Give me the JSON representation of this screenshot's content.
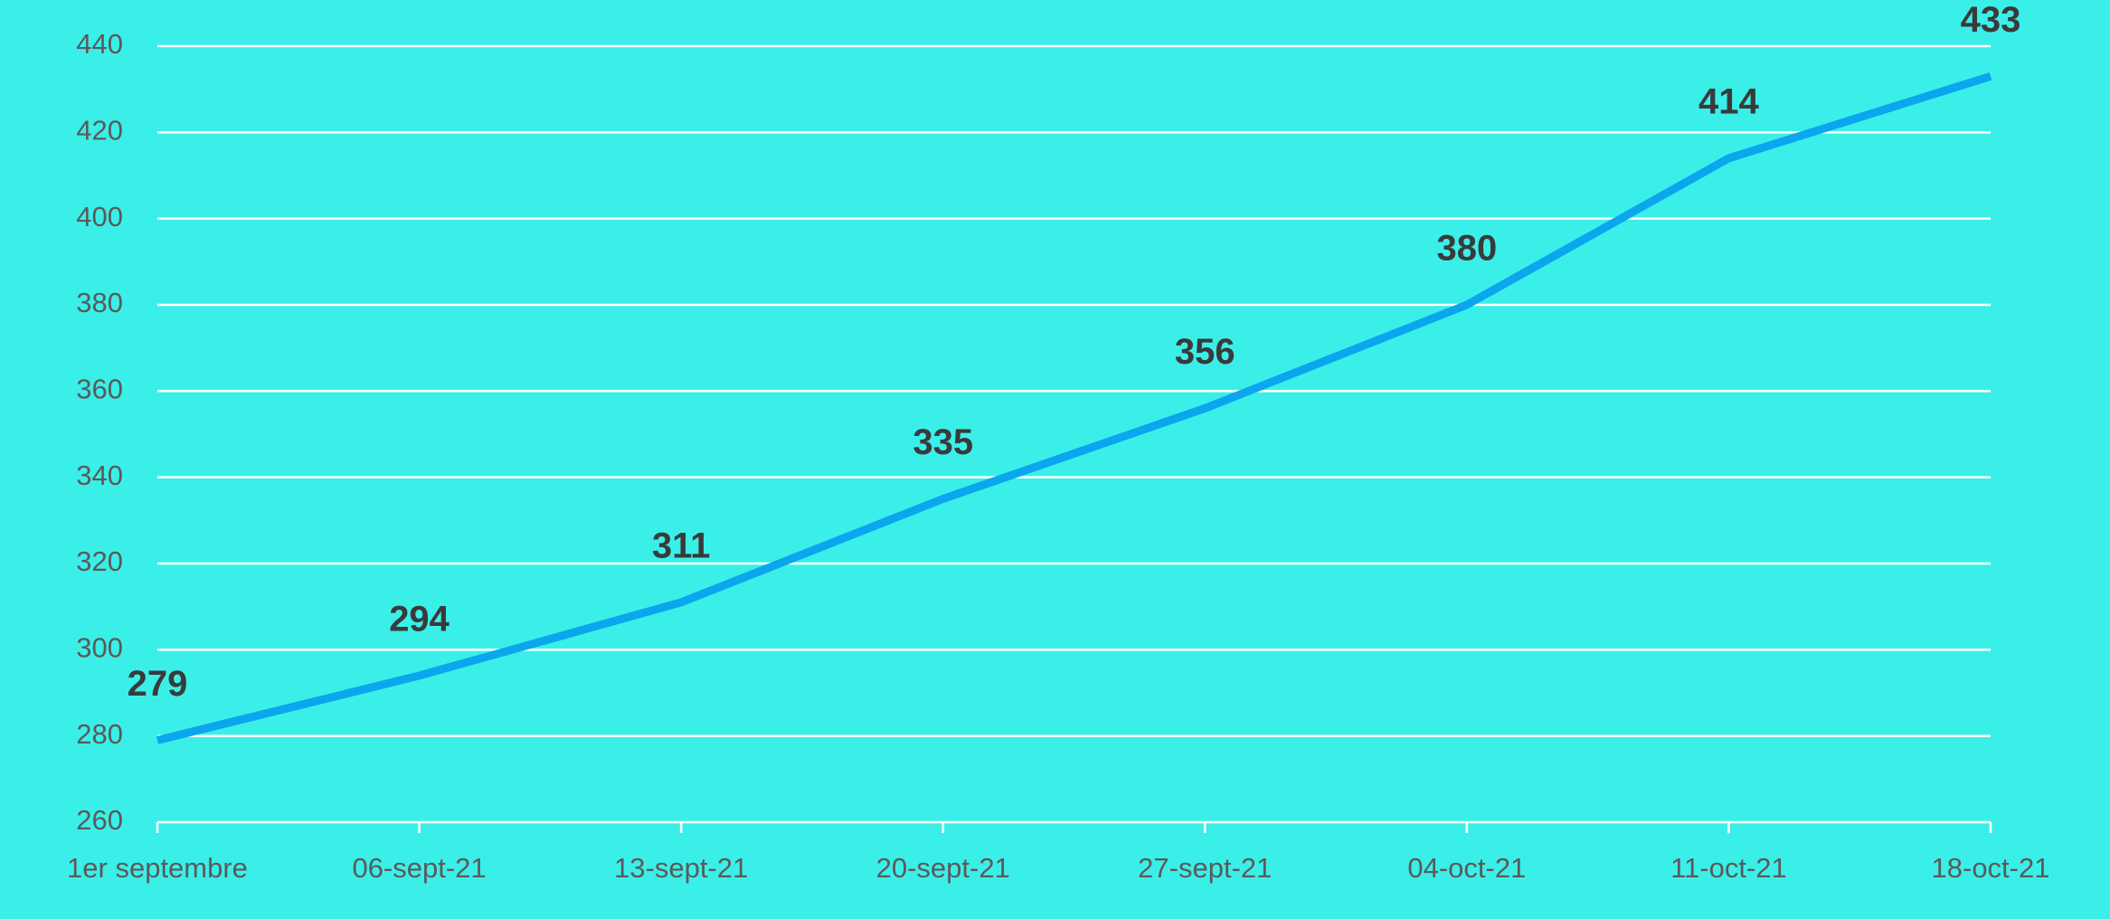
{
  "chart_data": {
    "type": "line",
    "categories": [
      "1er septembre",
      "06-sept-21",
      "13-sept-21",
      "20-sept-21",
      "27-sept-21",
      "04-oct-21",
      "11-oct-21",
      "18-oct-21"
    ],
    "series": [
      {
        "color": "#0ba6ee",
        "values": [
          279,
          294,
          311,
          335,
          356,
          380,
          414,
          433
        ]
      }
    ],
    "ylim": [
      260,
      440
    ],
    "yticks": [
      260,
      280,
      300,
      320,
      340,
      360,
      380,
      400,
      420,
      440
    ],
    "grid": true,
    "data_labels": true
  }
}
